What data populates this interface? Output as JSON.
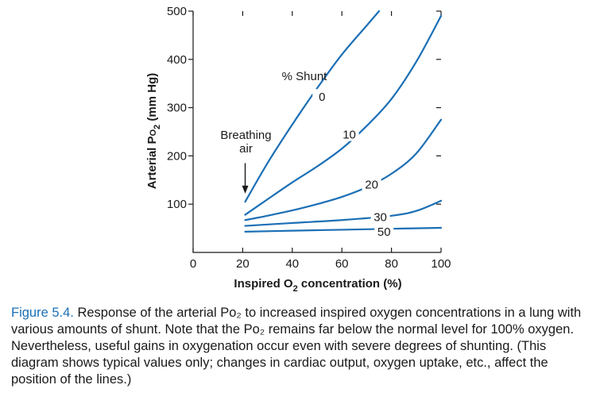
{
  "chart_data": {
    "type": "line",
    "title": "",
    "xlabel": "Inspired O₂ concentration (%)",
    "xlabel_parts": {
      "pre": "Inspired O",
      "sub": "2",
      "post": " concentration (%)"
    },
    "ylabel": "Arterial PO₂ (mm Hg)",
    "ylabel_parts": {
      "pre": "Arterial P",
      "o": "O",
      "sub": "2",
      "post": " (mm Hg)"
    },
    "xlim": [
      0,
      100
    ],
    "ylim": [
      0,
      500
    ],
    "x_ticks": [
      0,
      20,
      40,
      60,
      80,
      100
    ],
    "x_tick_labels": [
      "0",
      "20",
      "40",
      "60",
      "80",
      "100"
    ],
    "y_ticks": [
      100,
      200,
      300,
      400,
      500
    ],
    "y_tick_labels": [
      "100",
      "200",
      "300",
      "400",
      "500"
    ],
    "grid": false,
    "shunt_header": "% Shunt",
    "series": [
      {
        "name": "0",
        "color": "#1b6fb5",
        "label_x": 52,
        "label_y": 322,
        "x": [
          21,
          30,
          40,
          50,
          60,
          70,
          75
        ],
        "y": [
          105,
          185,
          265,
          340,
          410,
          470,
          500
        ]
      },
      {
        "name": "10",
        "color": "#1b6fb5",
        "label_x": 63,
        "label_y": 244,
        "x": [
          21,
          30,
          40,
          50,
          60,
          70,
          80,
          90,
          100
        ],
        "y": [
          78,
          110,
          145,
          178,
          215,
          262,
          318,
          395,
          490
        ]
      },
      {
        "name": "20",
        "color": "#1b6fb5",
        "label_x": 72,
        "label_y": 141,
        "x": [
          21,
          30,
          40,
          50,
          60,
          70,
          80,
          90,
          100
        ],
        "y": [
          67,
          76,
          87,
          100,
          115,
          135,
          163,
          205,
          275
        ]
      },
      {
        "name": "30",
        "color": "#1b6fb5",
        "label_x": 75.5,
        "label_y": 73,
        "x": [
          21,
          40,
          60,
          80,
          90,
          100
        ],
        "y": [
          55,
          61,
          67,
          76,
          86,
          107
        ]
      },
      {
        "name": "50",
        "color": "#1b6fb5",
        "label_x": 77,
        "label_y": 43,
        "x": [
          21,
          40,
          60,
          80,
          100
        ],
        "y": [
          43,
          45,
          47,
          49,
          51
        ]
      }
    ],
    "annotations": [
      {
        "text": [
          "Breathing",
          "air"
        ],
        "arrow_x": 21,
        "arrow_y_from": 185,
        "arrow_y_to": 122
      }
    ]
  },
  "caption": {
    "label": "Figure 5.4.",
    "text": " Response of the arterial Pᴏ₂ to increased inspired oxygen concentrations in a lung with various amounts of shunt. Note that the Pᴏ₂ remains far below the normal level for 100% oxygen. Nevertheless, useful gains in oxygenation occur even with severe degrees of shunting. (This diagram shows typical values only; changes in cardiac output, oxygen uptake, etc., affect the position of the lines.)"
  }
}
